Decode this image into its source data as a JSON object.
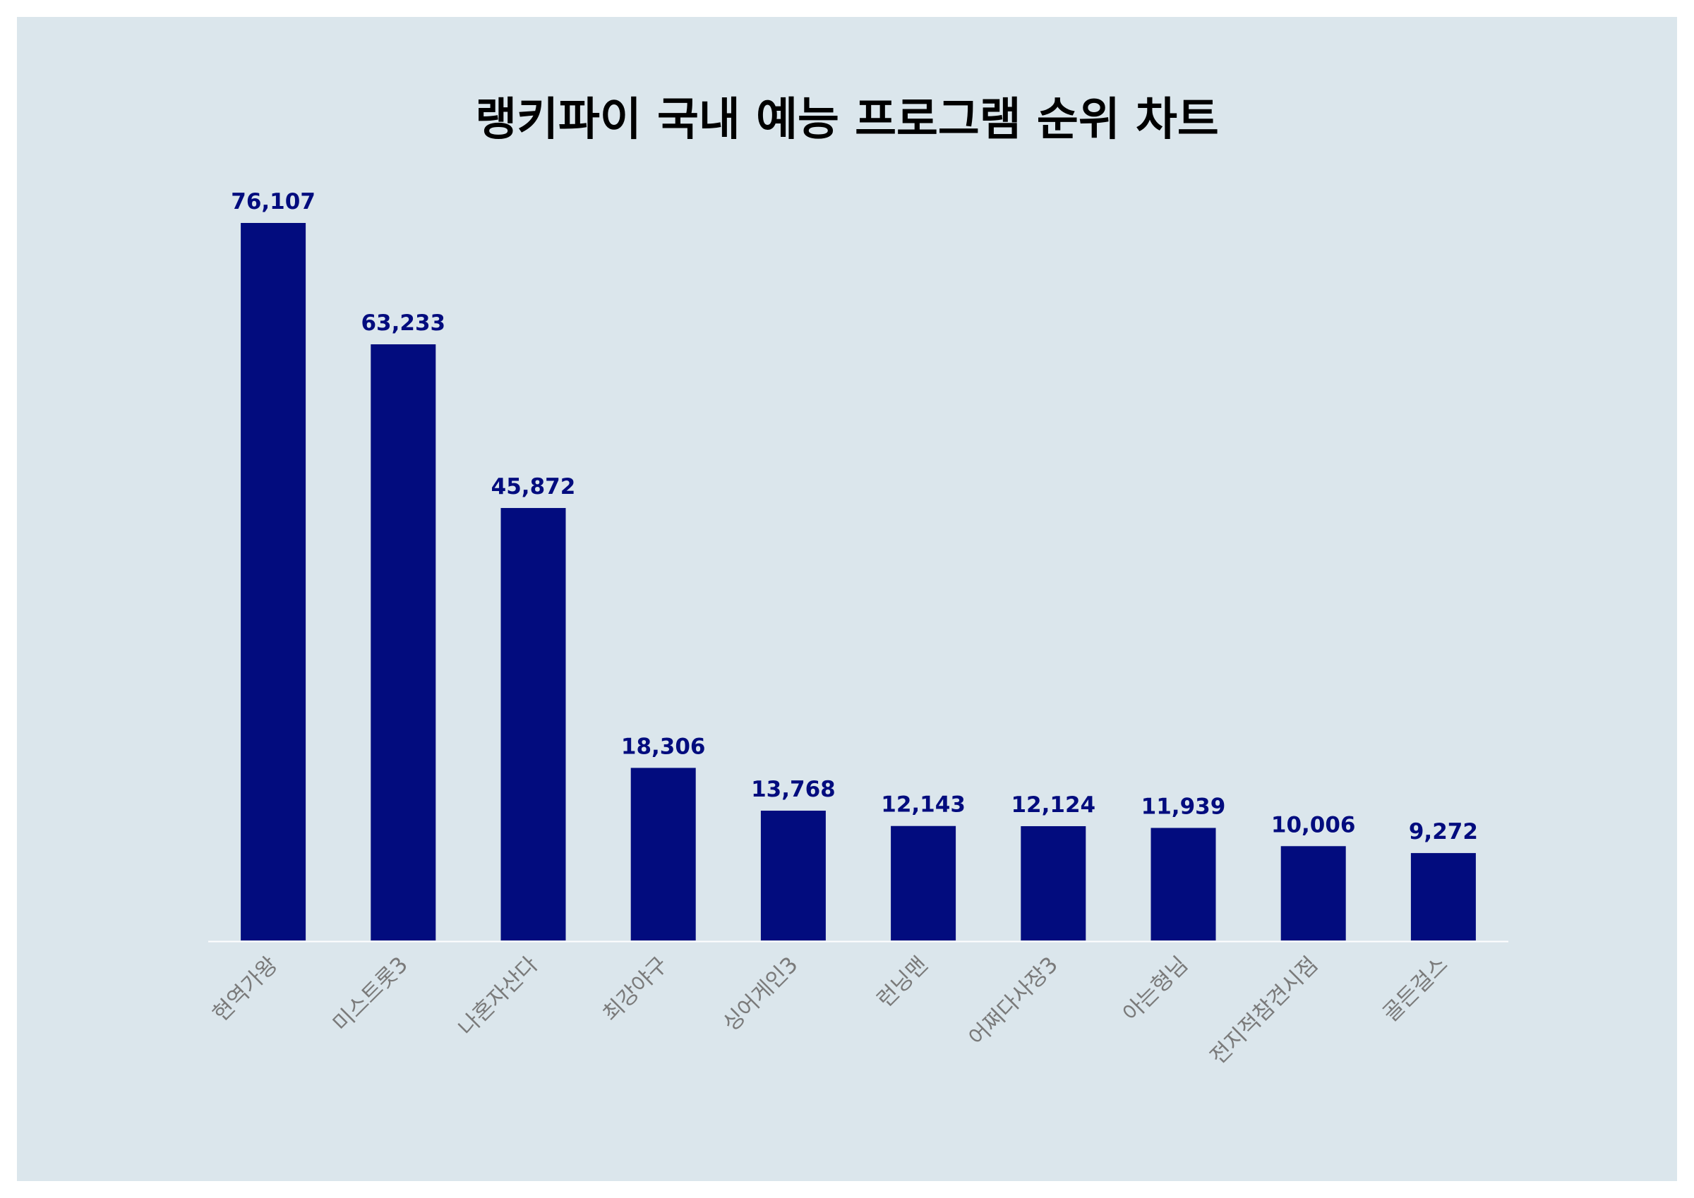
{
  "chart_data": {
    "type": "bar",
    "title": "랭키파이 국내 예능 프로그램 순위 차트",
    "categories": [
      "현역가왕",
      "미스트롯3",
      "나혼자산다",
      "최강야구",
      "싱어게인3",
      "런닝맨",
      "어쩌다사장3",
      "아는형님",
      "전지적참견시점",
      "골든걸스"
    ],
    "values": [
      76107,
      63233,
      45872,
      18306,
      13768,
      12143,
      12124,
      11939,
      10006,
      9272
    ],
    "value_labels": [
      "76,107",
      "63,233",
      "45,872",
      "18,306",
      "13,768",
      "12,143",
      "12,124",
      "11,939",
      "10,006",
      "9,272"
    ],
    "xlabel": "",
    "ylabel": "",
    "ylim": [
      0,
      76107
    ],
    "grid": false,
    "legend": "none",
    "colors": {
      "bar": "#020c7e",
      "value_label": "#020c7e",
      "tick_label": "#7a7a7a",
      "axis": "#ffffff",
      "background": "#dbe6ec"
    }
  }
}
